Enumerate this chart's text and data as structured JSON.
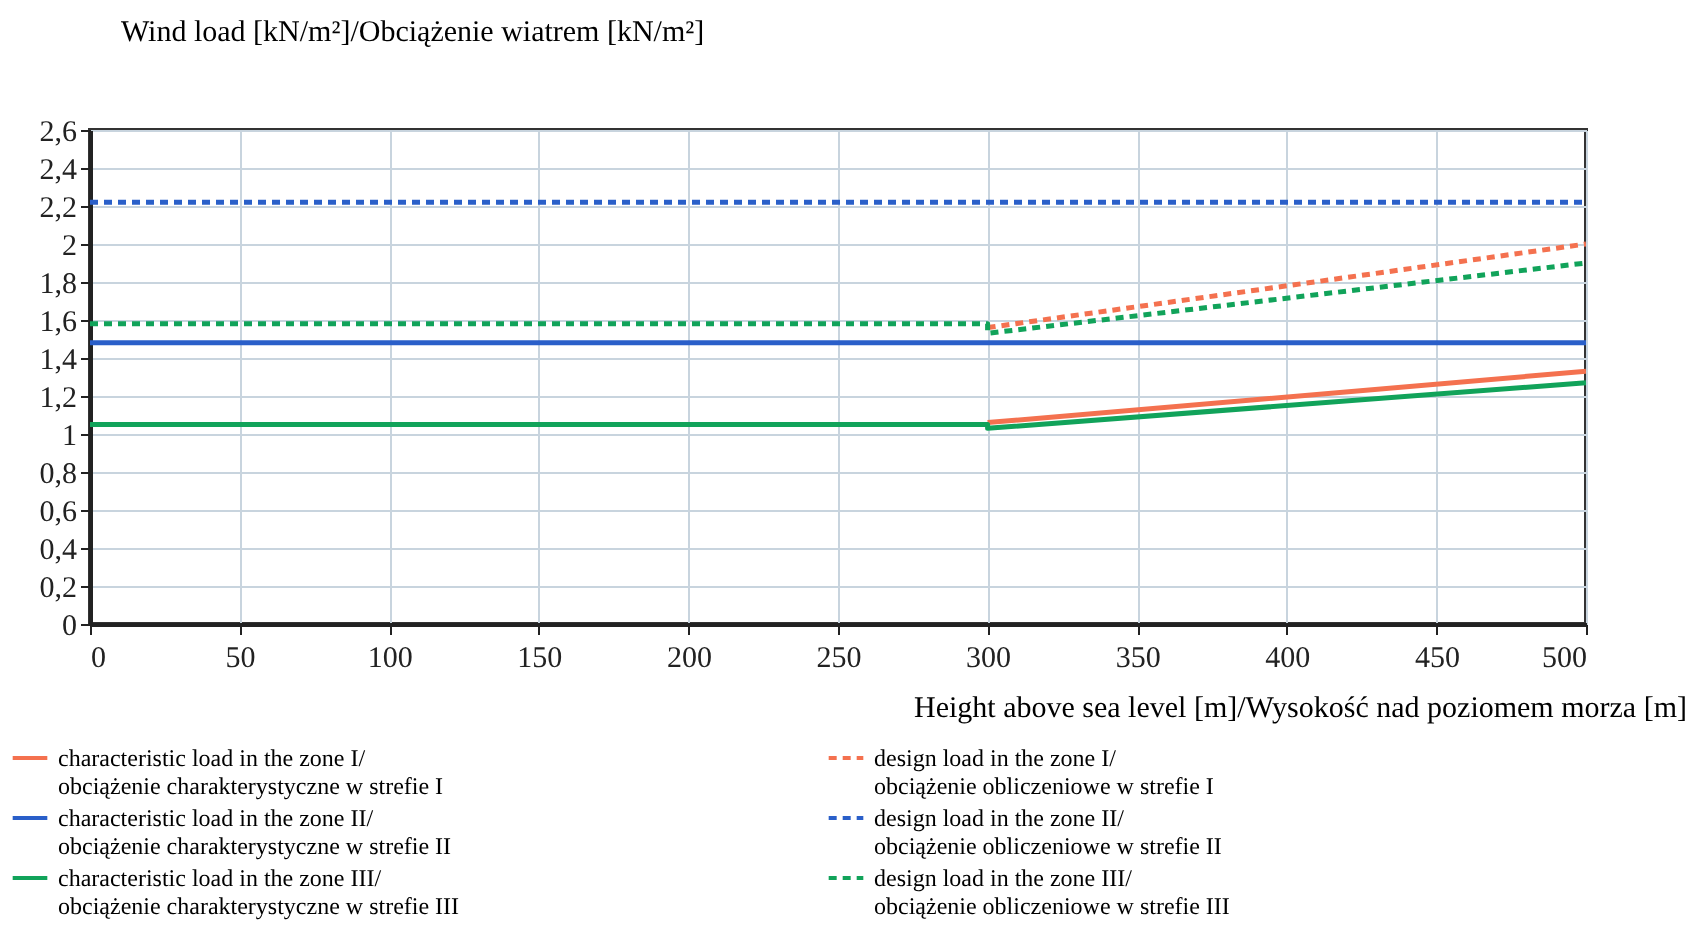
{
  "chart_data": {
    "type": "line",
    "xlabel": "Height above sea level [m]/Wysokość nad poziomem morza [m]",
    "ylabel": "Wind load [kN/m²]/Obciążenie wiatrem [kN/m²]",
    "xlim": [
      0,
      500
    ],
    "xticks": [
      0,
      50,
      100,
      150,
      200,
      250,
      300,
      350,
      400,
      450,
      500
    ],
    "ylim": [
      0,
      2.6
    ],
    "yticks": [
      0,
      {
        "value": 0.2,
        "label": "0,2"
      },
      {
        "value": 0.4,
        "label": "0,4"
      },
      {
        "value": 0.6,
        "label": "0,6"
      },
      {
        "value": 0.8,
        "label": "0,8"
      },
      1,
      {
        "value": 1.2,
        "label": "1,2"
      },
      {
        "value": 1.4,
        "label": "1,4"
      },
      {
        "value": 1.6,
        "label": "1,6"
      },
      {
        "value": 1.8,
        "label": "1,8"
      },
      2,
      {
        "value": 2.2,
        "label": "2,2"
      },
      {
        "value": 2.4,
        "label": "2,4"
      },
      {
        "value": 2.6,
        "label": "2,6"
      }
    ],
    "grid": true,
    "legend": "bottom",
    "series": [
      {
        "name": "characteristic load in the zone I/ obciążenie charakterystyczne w strefie I",
        "color": "#f4714f",
        "line_style": "solid",
        "x": [
          300,
          500
        ],
        "values": [
          1.06,
          1.33
        ]
      },
      {
        "name": "design load in the zone I/ obciążenie obliczeniowe w strefie I",
        "color": "#f4714f",
        "line_style": "dashed",
        "x": [
          300,
          500
        ],
        "values": [
          1.56,
          2.0
        ]
      },
      {
        "name": "characteristic load in the zone II/ obciążenie charakterystyczne w strefie II",
        "color": "#2a5fc9",
        "line_style": "solid",
        "x": [
          0,
          500
        ],
        "values": [
          1.48,
          1.48
        ]
      },
      {
        "name": "design load in the zone II/ obciążenie obliczeniowe w strefie II",
        "color": "#2a5fc9",
        "line_style": "dashed",
        "x": [
          0,
          500
        ],
        "values": [
          2.22,
          2.22
        ]
      },
      {
        "name": "characteristic load in the zone III/ obciążenie charakterystyczne w strefie III",
        "color": "#11a35a",
        "line_style": "solid",
        "x": [
          0,
          300,
          300,
          500
        ],
        "values": [
          1.05,
          1.05,
          1.03,
          1.27
        ]
      },
      {
        "name": "design load in the zone III/ obciążenie obliczeniowe w strefie III",
        "color": "#11a35a",
        "line_style": "dashed",
        "x": [
          0,
          300,
          300,
          500
        ],
        "values": [
          1.58,
          1.58,
          1.53,
          1.9
        ]
      }
    ]
  }
}
